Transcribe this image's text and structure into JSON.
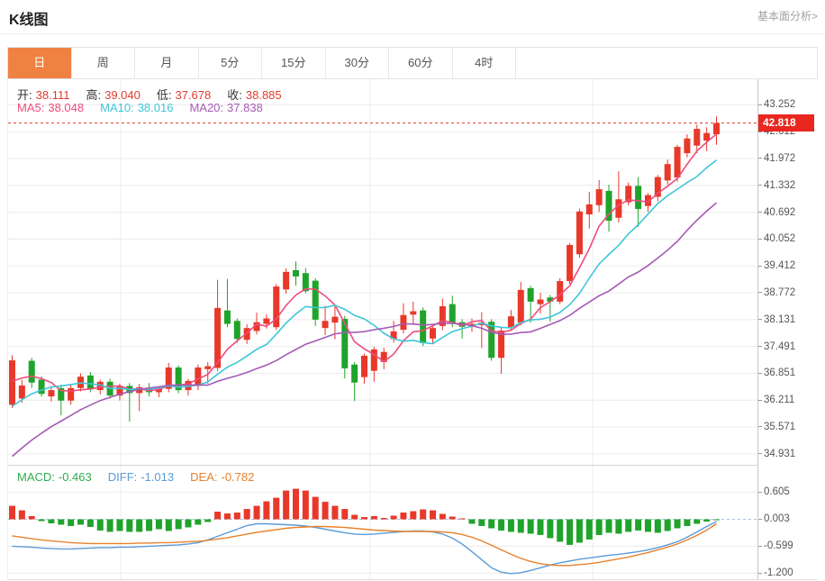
{
  "header": {
    "title": "K线图",
    "link_label": "基本面分析>"
  },
  "tabs": [
    {
      "label": "日",
      "active": true
    },
    {
      "label": "周",
      "active": false
    },
    {
      "label": "月",
      "active": false
    },
    {
      "label": "5分",
      "active": false
    },
    {
      "label": "15分",
      "active": false
    },
    {
      "label": "30分",
      "active": false
    },
    {
      "label": "60分",
      "active": false
    },
    {
      "label": "4时",
      "active": false
    }
  ],
  "ohlc_readout": [
    {
      "key": "open",
      "label": "开:",
      "value": "38.111"
    },
    {
      "key": "high",
      "label": "高:",
      "value": "39.040"
    },
    {
      "key": "low",
      "label": "低:",
      "value": "37.678"
    },
    {
      "key": "close",
      "label": "收:",
      "value": "38.885"
    }
  ],
  "ma_legend": [
    {
      "key": "ma5",
      "label": "MA5:",
      "value": "38.048",
      "color": "#ef4c7d"
    },
    {
      "key": "ma10",
      "label": "MA10:",
      "value": "38.016",
      "color": "#3ec6d9"
    },
    {
      "key": "ma20",
      "label": "MA20:",
      "value": "37.838",
      "color": "#a55ab4"
    }
  ],
  "macd_legend": [
    {
      "key": "macd",
      "label": "MACD:",
      "value": "-0.463",
      "color": "#2fae4e"
    },
    {
      "key": "diff",
      "label": "DIFF:",
      "value": "-1.013",
      "color": "#5b9bd5"
    },
    {
      "key": "dea",
      "label": "DEA:",
      "value": "-0.782",
      "color": "#e8822e"
    }
  ],
  "price_marker": {
    "value": 42.818,
    "label": "42.818",
    "color": "#e8281e"
  },
  "colors": {
    "up": "#e8382a",
    "down": "#1fa32b",
    "ma5": "#ef4c7d",
    "ma10": "#3ec6d9",
    "ma20": "#a55ab4",
    "diff": "#5b9bd5",
    "dea": "#e8822e",
    "tab_active": "#ef8243",
    "grid": "#ececec",
    "dotted_price_line": "#e8382a",
    "macd_zero_line": "#a9c3df",
    "ohlc_value": "#e03b2f",
    "ohlc_label": "#333333"
  },
  "chart_data": {
    "type": "candlestick+macd",
    "title": "K线图 (daily K-line with MA5/MA10/MA20 and MACD)",
    "legend_position": "top-left overlay",
    "grid": true,
    "main_y_axis": {
      "tick_labels": [
        "43.252",
        "42.612",
        "41.972",
        "41.332",
        "40.692",
        "40.052",
        "39.412",
        "38.772",
        "38.131",
        "37.491",
        "36.851",
        "36.211",
        "35.571",
        "34.931"
      ],
      "ylim": [
        34.69,
        43.86
      ]
    },
    "macd_y_axis": {
      "tick_labels": [
        "0.605",
        "0.003",
        "-0.599",
        "-1.200"
      ],
      "ylim": [
        -1.32,
        0.85
      ]
    },
    "candles_ohlc": [
      [
        36.1,
        37.28,
        36.02,
        37.16
      ],
      [
        36.25,
        36.7,
        36.15,
        36.56
      ],
      [
        37.15,
        37.22,
        36.5,
        36.63
      ],
      [
        36.7,
        36.78,
        36.3,
        36.36
      ],
      [
        36.3,
        36.55,
        36.18,
        36.45
      ],
      [
        36.5,
        36.58,
        35.85,
        36.2
      ],
      [
        36.2,
        36.58,
        36.1,
        36.5
      ],
      [
        36.5,
        36.85,
        36.42,
        36.77
      ],
      [
        36.8,
        36.88,
        36.4,
        36.47
      ],
      [
        36.45,
        36.7,
        36.35,
        36.65
      ],
      [
        36.65,
        36.72,
        36.25,
        36.32
      ],
      [
        36.32,
        36.6,
        36.2,
        36.55
      ],
      [
        36.55,
        36.62,
        35.7,
        36.38
      ],
      [
        36.38,
        36.6,
        35.95,
        36.52
      ],
      [
        36.5,
        36.62,
        36.3,
        36.4
      ],
      [
        36.4,
        36.55,
        36.28,
        36.48
      ],
      [
        36.48,
        37.1,
        36.4,
        36.99
      ],
      [
        36.99,
        37.04,
        36.38,
        36.45
      ],
      [
        36.45,
        36.72,
        36.32,
        36.67
      ],
      [
        36.55,
        37.06,
        36.45,
        36.99
      ],
      [
        36.95,
        37.12,
        36.6,
        37.02
      ],
      [
        36.98,
        39.08,
        36.9,
        38.41
      ],
      [
        38.35,
        39.1,
        37.95,
        38.03
      ],
      [
        38.1,
        38.16,
        37.58,
        37.67
      ],
      [
        37.65,
        38.02,
        37.55,
        37.93
      ],
      [
        37.86,
        38.3,
        37.78,
        38.07
      ],
      [
        38.03,
        38.26,
        37.92,
        38.16
      ],
      [
        37.95,
        38.98,
        37.88,
        38.92
      ],
      [
        38.85,
        39.35,
        38.75,
        39.27
      ],
      [
        39.31,
        39.52,
        38.94,
        39.16
      ],
      [
        39.24,
        39.36,
        38.76,
        38.81
      ],
      [
        39.06,
        39.12,
        37.98,
        38.13
      ],
      [
        37.93,
        38.46,
        37.76,
        38.1
      ],
      [
        38.06,
        38.45,
        37.66,
        38.2
      ],
      [
        38.15,
        38.22,
        36.73,
        36.97
      ],
      [
        37.06,
        37.12,
        36.19,
        36.63
      ],
      [
        36.76,
        37.32,
        36.6,
        37.27
      ],
      [
        36.91,
        37.48,
        36.65,
        37.42
      ],
      [
        37.12,
        37.46,
        36.95,
        37.36
      ],
      [
        37.67,
        38.1,
        37.58,
        37.85
      ],
      [
        37.89,
        38.52,
        37.8,
        38.24
      ],
      [
        38.25,
        38.56,
        38.04,
        38.33
      ],
      [
        38.35,
        38.42,
        37.5,
        37.57
      ],
      [
        37.68,
        38.0,
        37.55,
        37.93
      ],
      [
        37.98,
        38.63,
        37.88,
        38.45
      ],
      [
        38.5,
        38.7,
        37.95,
        38.04
      ],
      [
        38.07,
        38.14,
        37.68,
        37.96
      ],
      [
        37.96,
        38.16,
        37.84,
        38.03
      ],
      [
        38.0,
        38.31,
        37.45,
        38.06
      ],
      [
        38.08,
        38.14,
        37.15,
        37.22
      ],
      [
        37.22,
        37.96,
        36.84,
        37.87
      ],
      [
        37.95,
        38.36,
        37.88,
        38.21
      ],
      [
        38.06,
        39.03,
        38.0,
        38.84
      ],
      [
        38.88,
        38.94,
        38.06,
        38.56
      ],
      [
        38.5,
        38.77,
        38.28,
        38.61
      ],
      [
        38.66,
        38.72,
        38.08,
        38.56
      ],
      [
        38.56,
        39.12,
        38.5,
        39.05
      ],
      [
        39.05,
        39.96,
        38.98,
        39.91
      ],
      [
        39.69,
        40.78,
        39.6,
        40.71
      ],
      [
        40.64,
        41.18,
        40.3,
        40.88
      ],
      [
        40.86,
        41.46,
        40.7,
        41.24
      ],
      [
        41.2,
        41.35,
        40.23,
        40.49
      ],
      [
        40.56,
        41.67,
        40.45,
        41.0
      ],
      [
        40.93,
        41.4,
        40.85,
        41.32
      ],
      [
        41.32,
        41.53,
        40.34,
        40.77
      ],
      [
        40.84,
        41.15,
        40.7,
        41.1
      ],
      [
        41.06,
        41.58,
        40.95,
        41.53
      ],
      [
        41.45,
        41.95,
        41.35,
        41.84
      ],
      [
        41.52,
        42.3,
        41.42,
        42.25
      ],
      [
        42.1,
        42.55,
        42.0,
        42.45
      ],
      [
        42.28,
        42.78,
        42.1,
        42.68
      ],
      [
        42.4,
        42.72,
        42.15,
        42.58
      ],
      [
        42.55,
        42.98,
        42.3,
        42.818
      ]
    ],
    "ma_periods": [
      5,
      10,
      20
    ],
    "ma_seed_closes": [
      32.6,
      32.84,
      33.08,
      33.32,
      33.56,
      33.8,
      34.03,
      34.27,
      34.51,
      34.75,
      34.99,
      35.23,
      35.47,
      35.71,
      35.94,
      36.18,
      36.42,
      36.66,
      36.9
    ],
    "macd_bars": [
      0.3,
      0.2,
      0.07,
      -0.04,
      -0.09,
      -0.12,
      -0.15,
      -0.12,
      -0.17,
      -0.25,
      -0.28,
      -0.26,
      -0.28,
      -0.28,
      -0.26,
      -0.22,
      -0.26,
      -0.22,
      -0.18,
      -0.12,
      -0.06,
      0.17,
      0.13,
      0.15,
      0.23,
      0.3,
      0.4,
      0.48,
      0.64,
      0.68,
      0.64,
      0.5,
      0.39,
      0.3,
      0.23,
      0.1,
      0.05,
      0.07,
      0.03,
      0.08,
      0.15,
      0.18,
      0.22,
      0.2,
      0.12,
      0.06,
      0.02,
      -0.1,
      -0.15,
      -0.2,
      -0.25,
      -0.28,
      -0.3,
      -0.32,
      -0.35,
      -0.42,
      -0.5,
      -0.57,
      -0.52,
      -0.45,
      -0.35,
      -0.3,
      -0.32,
      -0.28,
      -0.25,
      -0.28,
      -0.3,
      -0.26,
      -0.2,
      -0.15,
      -0.1,
      -0.05,
      -0.02
    ],
    "diff_line": [
      -0.6,
      -0.61,
      -0.62,
      -0.64,
      -0.65,
      -0.66,
      -0.66,
      -0.65,
      -0.64,
      -0.63,
      -0.63,
      -0.62,
      -0.62,
      -0.61,
      -0.6,
      -0.59,
      -0.58,
      -0.57,
      -0.55,
      -0.52,
      -0.46,
      -0.38,
      -0.3,
      -0.22,
      -0.14,
      -0.1,
      -0.1,
      -0.11,
      -0.12,
      -0.13,
      -0.15,
      -0.18,
      -0.22,
      -0.26,
      -0.3,
      -0.33,
      -0.34,
      -0.33,
      -0.31,
      -0.29,
      -0.27,
      -0.26,
      -0.26,
      -0.28,
      -0.33,
      -0.42,
      -0.55,
      -0.72,
      -0.9,
      -1.08,
      -1.18,
      -1.21,
      -1.19,
      -1.14,
      -1.08,
      -1.02,
      -0.97,
      -0.93,
      -0.89,
      -0.86,
      -0.83,
      -0.8,
      -0.78,
      -0.75,
      -0.72,
      -0.68,
      -0.63,
      -0.57,
      -0.5,
      -0.4,
      -0.28,
      -0.16,
      -0.05
    ],
    "dea_line": [
      -0.37,
      -0.4,
      -0.43,
      -0.46,
      -0.48,
      -0.5,
      -0.52,
      -0.53,
      -0.54,
      -0.54,
      -0.54,
      -0.54,
      -0.54,
      -0.53,
      -0.53,
      -0.52,
      -0.52,
      -0.51,
      -0.5,
      -0.49,
      -0.47,
      -0.44,
      -0.41,
      -0.37,
      -0.33,
      -0.29,
      -0.26,
      -0.23,
      -0.2,
      -0.18,
      -0.17,
      -0.16,
      -0.16,
      -0.17,
      -0.18,
      -0.2,
      -0.22,
      -0.24,
      -0.25,
      -0.26,
      -0.27,
      -0.27,
      -0.27,
      -0.27,
      -0.28,
      -0.3,
      -0.34,
      -0.4,
      -0.48,
      -0.58,
      -0.68,
      -0.78,
      -0.87,
      -0.94,
      -0.99,
      -1.02,
      -1.03,
      -1.03,
      -1.01,
      -0.99,
      -0.96,
      -0.92,
      -0.88,
      -0.84,
      -0.79,
      -0.74,
      -0.68,
      -0.62,
      -0.55,
      -0.46,
      -0.36,
      -0.24,
      -0.1
    ]
  }
}
